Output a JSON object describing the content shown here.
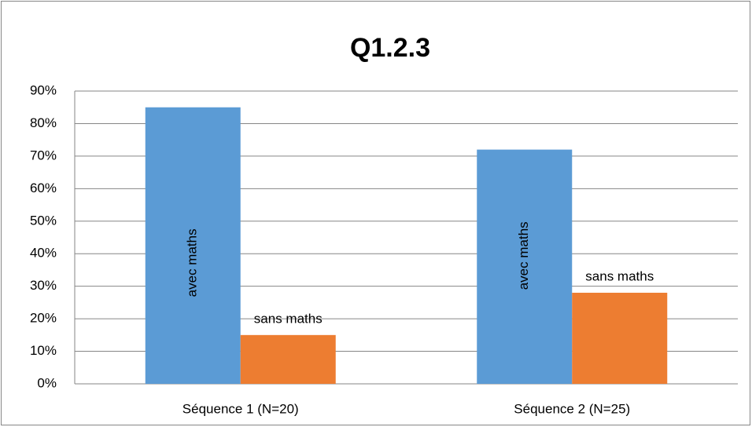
{
  "chart_data": {
    "type": "bar",
    "title": "Q1.2.3",
    "categories": [
      "Séquence 1 (N=20)",
      "Séquence 2 (N=25)"
    ],
    "series": [
      {
        "name": "avec maths",
        "color": "#5b9bd5",
        "values": [
          85,
          72
        ]
      },
      {
        "name": "sans maths",
        "color": "#ed7d31",
        "values": [
          15,
          28
        ]
      }
    ],
    "ylim": [
      0,
      90
    ],
    "yticks": [
      {
        "value": 0,
        "label": "0%"
      },
      {
        "value": 10,
        "label": "10%"
      },
      {
        "value": 20,
        "label": "20%"
      },
      {
        "value": 30,
        "label": "30%"
      },
      {
        "value": 40,
        "label": "40%"
      },
      {
        "value": 50,
        "label": "50%"
      },
      {
        "value": 60,
        "label": "60%"
      },
      {
        "value": 70,
        "label": "70%"
      },
      {
        "value": 80,
        "label": "80%"
      },
      {
        "value": 90,
        "label": "90%"
      }
    ],
    "grid": true
  }
}
